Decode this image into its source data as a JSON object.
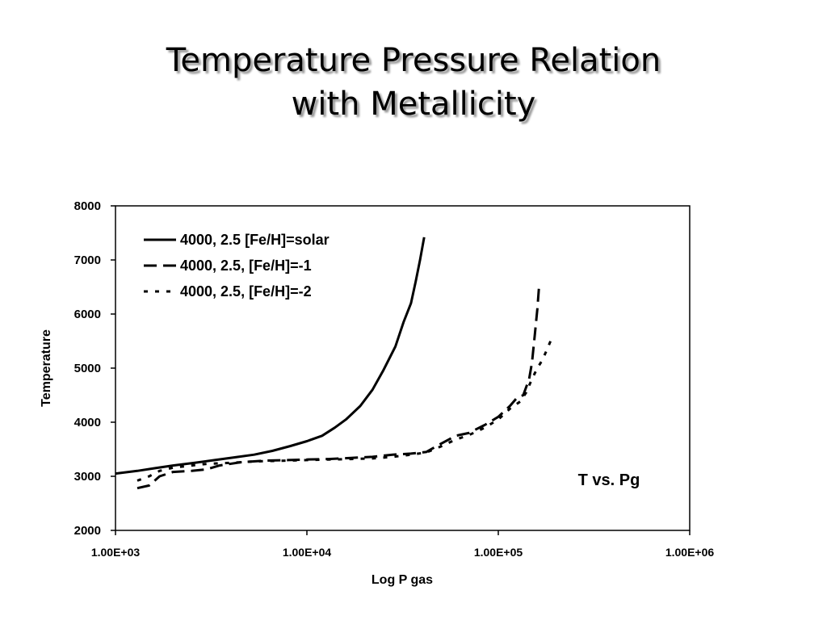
{
  "slide": {
    "title_line1": "Temperature Pressure Relation",
    "title_line2": "with Metallicity"
  },
  "chart_data": {
    "type": "line",
    "xlabel": "Log P gas",
    "ylabel": "Temperature",
    "x_scale": "log",
    "xlim": [
      1000,
      1000000
    ],
    "ylim": [
      2000,
      8000
    ],
    "x_ticks": [
      1000,
      10000,
      100000,
      1000000
    ],
    "x_tick_labels": [
      "1.00E+03",
      "1.00E+04",
      "1.00E+05",
      "1.00E+06"
    ],
    "y_ticks": [
      2000,
      3000,
      4000,
      5000,
      6000,
      7000,
      8000
    ],
    "y_tick_labels": [
      "2000",
      "3000",
      "4000",
      "5000",
      "6000",
      "7000",
      "8000"
    ],
    "grid": false,
    "legend_position": "top-left",
    "annotation": "T vs. Pg",
    "series": [
      {
        "name": "4000, 2.5 [Fe/H]=solar",
        "dash": "solid",
        "x": [
          1000,
          1300,
          1600,
          2000,
          2600,
          3300,
          4200,
          5300,
          6600,
          8200,
          10000,
          12000,
          14000,
          16000,
          19000,
          22000,
          25000,
          29000,
          32000,
          35000,
          37000,
          39000,
          41000
        ],
        "y": [
          3050,
          3100,
          3150,
          3200,
          3250,
          3300,
          3350,
          3400,
          3470,
          3560,
          3650,
          3750,
          3900,
          4050,
          4300,
          4600,
          4950,
          5400,
          5850,
          6200,
          6600,
          7000,
          7420
        ]
      },
      {
        "name": "4000, 2.5, [Fe/H]=-1",
        "dash": "dash",
        "x": [
          1300,
          1500,
          1700,
          2000,
          2500,
          3000,
          3500,
          4500,
          6000,
          8000,
          10000,
          13000,
          17000,
          22000,
          28000,
          35000,
          42000,
          50000,
          60000,
          70000,
          85000,
          100000,
          115000,
          125000,
          135000,
          145000,
          150000,
          155000,
          160000,
          163000
        ],
        "y": [
          2780,
          2830,
          3000,
          3080,
          3100,
          3130,
          3200,
          3260,
          3290,
          3300,
          3310,
          3320,
          3340,
          3360,
          3400,
          3420,
          3450,
          3600,
          3750,
          3800,
          3950,
          4100,
          4300,
          4450,
          4500,
          4800,
          5100,
          5600,
          6100,
          6480
        ]
      },
      {
        "name": "4000, 2.5, [Fe/H]=-2",
        "dash": "dot",
        "x": [
          1300,
          1500,
          1700,
          2000,
          2500,
          3000,
          4000,
          5000,
          6000,
          8000,
          10000,
          13000,
          17000,
          22000,
          28000,
          35000,
          42000,
          50000,
          60000,
          70000,
          85000,
          100000,
          115000,
          130000,
          140000,
          150000,
          160000,
          170000,
          180000,
          190000
        ],
        "y": [
          2920,
          3000,
          3100,
          3160,
          3200,
          3230,
          3250,
          3270,
          3280,
          3290,
          3300,
          3310,
          3320,
          3330,
          3360,
          3400,
          3440,
          3550,
          3680,
          3760,
          3900,
          4050,
          4250,
          4380,
          4550,
          4800,
          5000,
          5150,
          5350,
          5550
        ]
      }
    ]
  }
}
